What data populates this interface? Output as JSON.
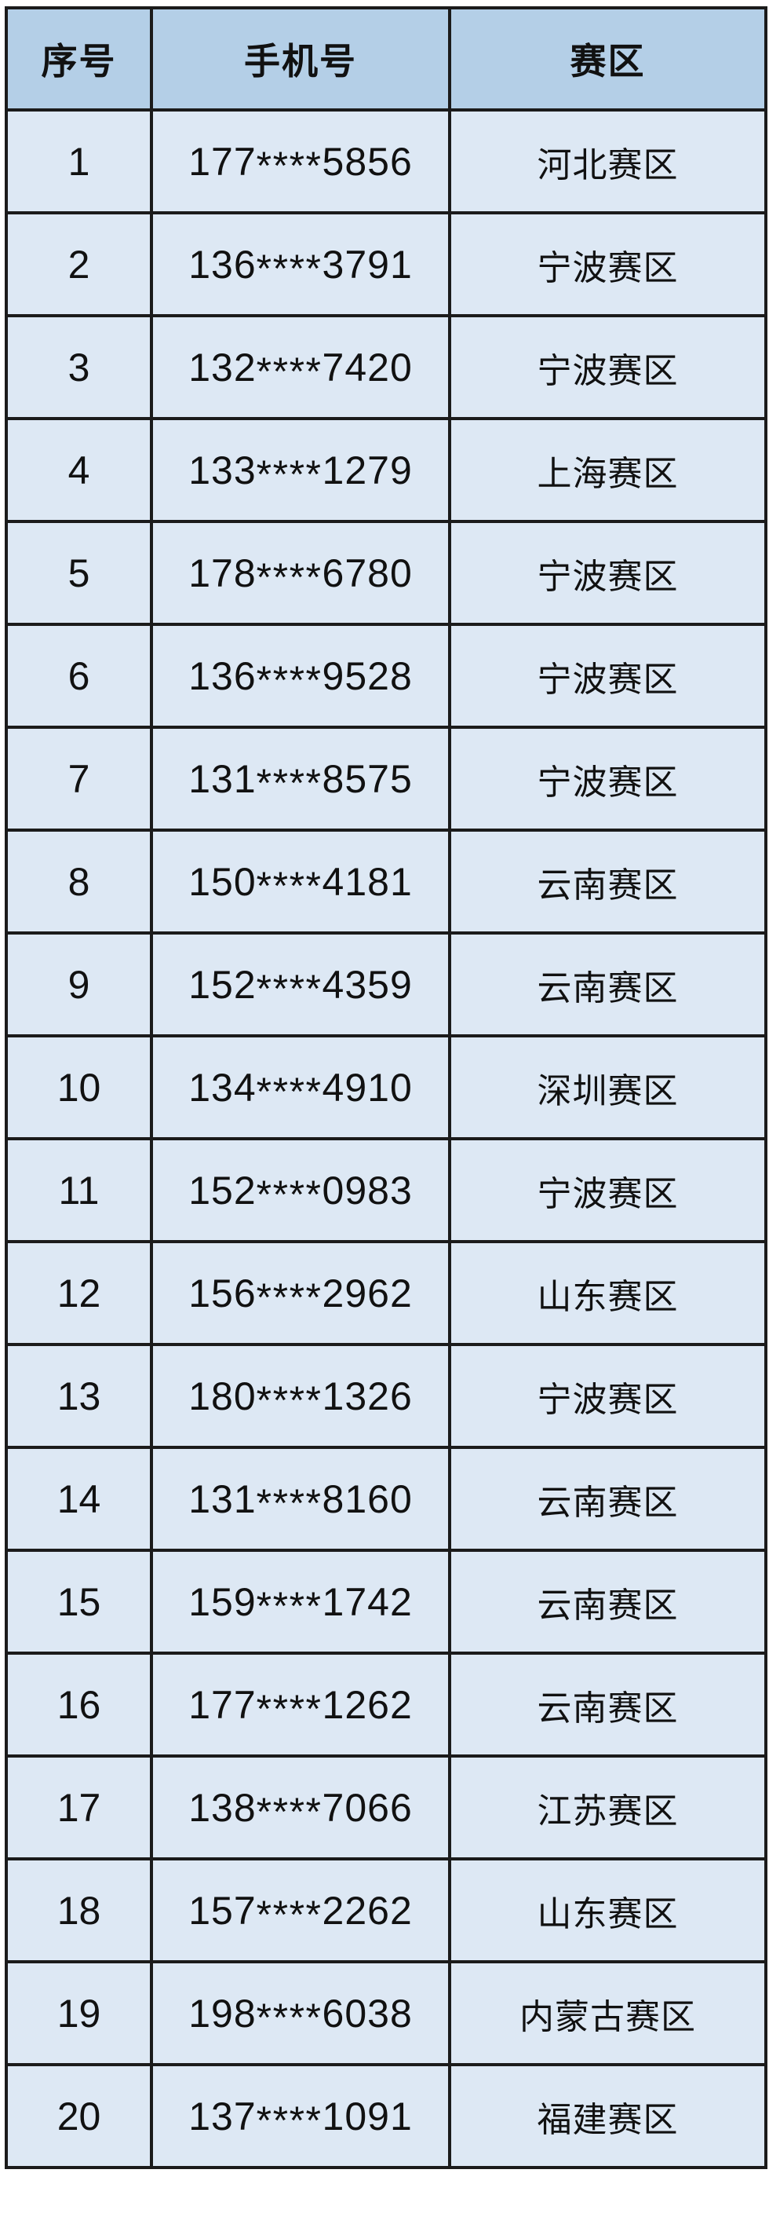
{
  "page": {
    "background": "#ffffff"
  },
  "table": {
    "columns": [
      {
        "key": "index",
        "label": "序号"
      },
      {
        "key": "phone",
        "label": "手机号"
      },
      {
        "key": "zone",
        "label": "赛区"
      }
    ],
    "rows": [
      {
        "index": "1",
        "phone": "177****5856",
        "zone": "河北赛区"
      },
      {
        "index": "2",
        "phone": "136****3791",
        "zone": "宁波赛区"
      },
      {
        "index": "3",
        "phone": "132****7420",
        "zone": "宁波赛区"
      },
      {
        "index": "4",
        "phone": "133****1279",
        "zone": "上海赛区"
      },
      {
        "index": "5",
        "phone": "178****6780",
        "zone": "宁波赛区"
      },
      {
        "index": "6",
        "phone": "136****9528",
        "zone": "宁波赛区"
      },
      {
        "index": "7",
        "phone": "131****8575",
        "zone": "宁波赛区"
      },
      {
        "index": "8",
        "phone": "150****4181",
        "zone": "云南赛区"
      },
      {
        "index": "9",
        "phone": "152****4359",
        "zone": "云南赛区"
      },
      {
        "index": "10",
        "phone": "134****4910",
        "zone": "深圳赛区"
      },
      {
        "index": "11",
        "phone": "152****0983",
        "zone": "宁波赛区"
      },
      {
        "index": "12",
        "phone": "156****2962",
        "zone": "山东赛区"
      },
      {
        "index": "13",
        "phone": "180****1326",
        "zone": "宁波赛区"
      },
      {
        "index": "14",
        "phone": "131****8160",
        "zone": "云南赛区"
      },
      {
        "index": "15",
        "phone": "159****1742",
        "zone": "云南赛区"
      },
      {
        "index": "16",
        "phone": "177****1262",
        "zone": "云南赛区"
      },
      {
        "index": "17",
        "phone": "138****7066",
        "zone": "江苏赛区"
      },
      {
        "index": "18",
        "phone": "157****2262",
        "zone": "山东赛区"
      },
      {
        "index": "19",
        "phone": "198****6038",
        "zone": "内蒙古赛区"
      },
      {
        "index": "20",
        "phone": "137****1091",
        "zone": "福建赛区"
      }
    ],
    "colors": {
      "header_bg": "#b4cfe7",
      "row_bg": "#dde8f4",
      "border": "#1b1b1b",
      "text": "#111111",
      "page_bg": "#ffffff"
    }
  }
}
